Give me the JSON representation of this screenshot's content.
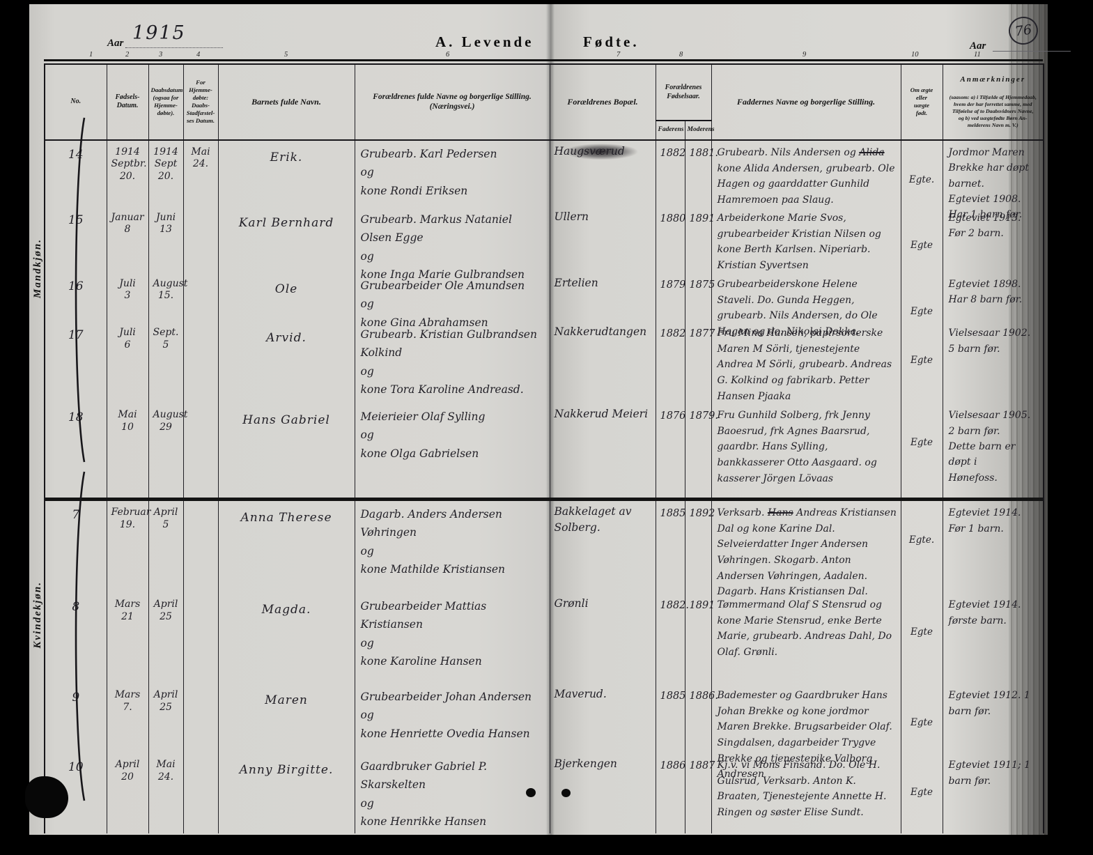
{
  "page": {
    "year_label": "Aar",
    "year_value": "1915",
    "title_left": "A.  Levende",
    "title_right": "Fødte.",
    "year_label_right": "Aar",
    "page_number": "76",
    "column_numbers": [
      "1",
      "2",
      "3",
      "4",
      "5",
      "6",
      "7",
      "8",
      "9",
      "10",
      "11"
    ]
  },
  "table": {
    "headers": {
      "no": "No.",
      "born": "Fødsels-\nDatum.",
      "baptized": "Daabsdatum\n(ogsaa for\nHjemme-\ndøbte).",
      "confirmed": "For Hjemme-\ndøbte:\nDaabs-\nStadfæstel-\nses Datum.",
      "name": "Barnets fulde Navn.",
      "parents": "Forældrenes fulde Navne og borgerlige Stilling.\n(Næringsvei.)",
      "residence": "Forældrenes Bopæl.",
      "parents_birth": "Forældrenes\nFødselsaar.",
      "father": "Faderens",
      "mother": "Moderens",
      "sponsors": "Faddernes Navne og borgerlige Stilling.",
      "legitimate": "Om ægte\neller\nuægte\nfødt.",
      "remarks_title": "Anmærkninger",
      "remarks_note": "(saasom: a) i Tilfælde af Hjemmedaab,\nhvem der har forrettet samme, med\nTilføielse af to Daabsvidners Navne,\nog b) ved uægtefødte Børn An-\nmelderens Navn m. V.)"
    },
    "sections": [
      {
        "label": "Mandkjøn.",
        "entries": [
          {
            "no": "14",
            "born": "1914\nSeptbr.\n20.",
            "baptized": "1914\nSept\n20.",
            "confirmed": "Mai\n24.",
            "name": "Erik.",
            "parents": "Grubearb. Karl Pedersen\nog\nkone Rondi Eriksen",
            "residence": "Haugsværud",
            "residence_blotted": true,
            "father_year": "1882",
            "mother_year": "1881.",
            "sponsors": "Grubearb. Nils Andersen og ~~Alida~~ kone Alida Andersen, grubearb. Ole Hagen og gaarddatter Gunhild Hamremoen paa Slaug.",
            "legitimate": "Egte.",
            "remarks": "Jordmor Maren Brekke har døpt barnet.\nEgteviet 1908. Har 1 barn før."
          },
          {
            "no": "15",
            "born": "Januar\n8",
            "baptized": "Juni\n13",
            "confirmed": "",
            "name": "Karl Bernhard",
            "parents": "Grubearb. Markus Nataniel Olsen Egge\nog\nkone Inga Marie Gulbrandsen",
            "residence": "Ullern",
            "father_year": "1880",
            "mother_year": "1891",
            "sponsors": "Arbeiderkone Marie Svos, grubearbeider Kristian Nilsen og kone Berth Karlsen. Niperiarb. Kristian Syvertsen",
            "legitimate": "Egte",
            "remarks": "Egteviet 1913. Før 2 barn."
          },
          {
            "no": "16",
            "born": "Juli\n3",
            "baptized": "August\n15.",
            "confirmed": "",
            "name": "Ole",
            "parents": "Grubearbeider Ole Amundsen\nog\nkone Gina Abrahamsen",
            "residence": "Ertelien",
            "father_year": "1879",
            "mother_year": "1875",
            "sponsors": "Grubearbeiderskone Helene Staveli. Do. Gunda Heggen, grubearb. Nils Andersen, do Ole Hagen og do. Nikolai Dokka.",
            "legitimate": "Egte",
            "remarks": "Egteviet 1898. Har 8 barn før."
          },
          {
            "no": "17",
            "born": "Juli\n6",
            "baptized": "Sept.\n5",
            "confirmed": "",
            "name": "Arvid.",
            "parents": "Grubearb. Kristian Gulbrandsen Kolkind\nog\nkone Tora Karoline Andreasd.",
            "residence": "Nakkerudtangen",
            "father_year": "1882",
            "mother_year": "1877",
            "sponsors": "Fru Mina Hansen, papirsorterske Maren M Sörli, tjenestejente Andrea M Sörli, grubearb. Andreas G. Kolkind og fabrikarb. Petter Hansen Pjaaka",
            "legitimate": "Egte",
            "remarks": "Vielsesaar 1902. 5 barn før."
          },
          {
            "no": "18",
            "born": "Mai\n10",
            "baptized": "August\n29",
            "confirmed": "",
            "name": "Hans Gabriel",
            "parents": "Meierieier Olaf Sylling\nog\nkone Olga Gabrielsen",
            "residence": "Nakkerud Meieri",
            "father_year": "1876",
            "mother_year": "1879.",
            "sponsors": "Fru Gunhild Solberg, frk Jenny Baoesrud, frk Agnes Baarsrud, gaardbr. Hans Sylling, bankkasserer Otto Aasgaard. og kasserer Jörgen Lövaas",
            "legitimate": "Egte",
            "remarks": "Vielsesaar 1905. 2 barn før.\nDette barn er døpt i\nHønefoss."
          }
        ]
      },
      {
        "label": "Kvindekjøn.",
        "entries": [
          {
            "no": "7",
            "born": "Februar\n19.",
            "baptized": "April\n5",
            "confirmed": "",
            "name": "Anna Therese",
            "parents": "Dagarb. Anders Andersen Vøhringen\nog\nkone Mathilde Kristiansen",
            "residence": "Bakkelaget av\nSolberg.",
            "father_year": "1885",
            "mother_year": "1892",
            "sponsors": "Verksarb. ~~Hans~~ Andreas Kristiansen Dal og kone Karine Dal. Selveierdatter Inger Andersen Vøhringen. Skogarb. Anton Andersen Vøhringen, Aadalen. Dagarb. Hans Kristiansen Dal.",
            "legitimate": "Egte.",
            "remarks": "Egteviet 1914. Før 1 barn."
          },
          {
            "no": "8",
            "born": "Mars\n21",
            "baptized": "April\n25",
            "confirmed": "",
            "name": "Magda.",
            "parents": "Grubearbeider Mattias Kristiansen\nog\nkone Karoline Hansen",
            "residence": "Grønli",
            "father_year": "1882.",
            "mother_year": "1891",
            "sponsors": "Tømmermand Olaf S Stensrud og kone Marie Stensrud, enke Berte Marie, grubearb. Andreas Dahl, Do Olaf. Grønli.",
            "legitimate": "Egte",
            "remarks": "Egteviet 1914. første barn."
          },
          {
            "no": "9",
            "born": "Mars\n7.",
            "baptized": "April\n25",
            "confirmed": "",
            "name": "Maren",
            "parents": "Grubearbeider Johan Andersen\nog\nkone Henriette Ovedia Hansen",
            "residence": "Maverud.",
            "father_year": "1885",
            "mother_year": "1886.",
            "sponsors": "Bademester og Gaardbruker Hans Johan Brekke og kone jordmor Maren Brekke. Brugsarbeider Olaf. Singdalsen, dagarbeider Trygve Brekke og tjenestepike Valborg Andresen",
            "legitimate": "Egte",
            "remarks": "Egteviet 1912. 1 barn før."
          },
          {
            "no": "10",
            "born": "April\n20",
            "baptized": "Mai\n24.",
            "confirmed": "",
            "name": "Anny Birgitte.",
            "parents": "Gaardbruker Gabriel P. Skarskelten\nog\nkone Henrikke Hansen",
            "residence": "Bjerkengen",
            "father_year": "1886",
            "mother_year": "1887",
            "sponsors": "Kj.v. vi Mons Finsand. Do. Ole H. Gulsrud, Verksarb. Anton K. Braaten, Tjenestejente Annette H. Ringen og søster Elise Sundt.",
            "legitimate": "Egte",
            "remarks": "Egteviet 1911; 1 barn før."
          }
        ]
      }
    ]
  }
}
